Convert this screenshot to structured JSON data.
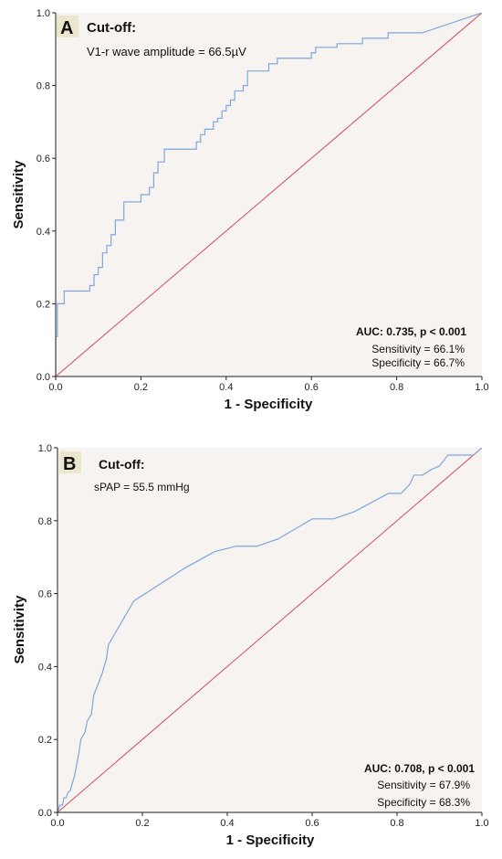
{
  "chart_data": [
    {
      "type": "line",
      "panel_label": "A",
      "cutoff_title": "Cut-off:",
      "cutoff_value": "V1-r wave amplitude = 66.5µV",
      "xlabel": "1 - Specificity",
      "ylabel": "Sensitivity",
      "xlim": [
        0,
        1
      ],
      "ylim": [
        0,
        1
      ],
      "x_ticks": [
        "0.0",
        "0.2",
        "0.4",
        "0.6",
        "0.8",
        "1.0"
      ],
      "y_ticks": [
        "0.0",
        "0.2",
        "0.4",
        "0.6",
        "0.8",
        "1.0"
      ],
      "auc_text": "AUC: 0.735, p < 0.001",
      "sensitivity_text": "Sensitivity = 66.1%",
      "specificity_text": "Specificity = 66.7%",
      "roc_color": "#7ea6dc",
      "reference_color": "#cf4a5f",
      "background": "#f7f3f0",
      "roc_curve": [
        [
          0,
          0
        ],
        [
          0,
          0.11
        ],
        [
          0.004,
          0.11
        ],
        [
          0.004,
          0.2
        ],
        [
          0.02,
          0.2
        ],
        [
          0.02,
          0.235
        ],
        [
          0.08,
          0.235
        ],
        [
          0.08,
          0.25
        ],
        [
          0.09,
          0.25
        ],
        [
          0.09,
          0.28
        ],
        [
          0.1,
          0.28
        ],
        [
          0.1,
          0.3
        ],
        [
          0.11,
          0.3
        ],
        [
          0.11,
          0.34
        ],
        [
          0.12,
          0.34
        ],
        [
          0.12,
          0.36
        ],
        [
          0.13,
          0.36
        ],
        [
          0.13,
          0.39
        ],
        [
          0.14,
          0.39
        ],
        [
          0.14,
          0.43
        ],
        [
          0.16,
          0.43
        ],
        [
          0.16,
          0.48
        ],
        [
          0.2,
          0.48
        ],
        [
          0.2,
          0.5
        ],
        [
          0.22,
          0.5
        ],
        [
          0.22,
          0.52
        ],
        [
          0.23,
          0.52
        ],
        [
          0.23,
          0.56
        ],
        [
          0.24,
          0.56
        ],
        [
          0.24,
          0.59
        ],
        [
          0.255,
          0.59
        ],
        [
          0.255,
          0.625
        ],
        [
          0.33,
          0.625
        ],
        [
          0.33,
          0.645
        ],
        [
          0.34,
          0.645
        ],
        [
          0.34,
          0.665
        ],
        [
          0.35,
          0.665
        ],
        [
          0.35,
          0.68
        ],
        [
          0.37,
          0.68
        ],
        [
          0.37,
          0.7
        ],
        [
          0.38,
          0.7
        ],
        [
          0.38,
          0.71
        ],
        [
          0.39,
          0.71
        ],
        [
          0.39,
          0.73
        ],
        [
          0.4,
          0.73
        ],
        [
          0.4,
          0.745
        ],
        [
          0.41,
          0.745
        ],
        [
          0.41,
          0.76
        ],
        [
          0.42,
          0.76
        ],
        [
          0.42,
          0.785
        ],
        [
          0.44,
          0.785
        ],
        [
          0.44,
          0.8
        ],
        [
          0.45,
          0.8
        ],
        [
          0.45,
          0.84
        ],
        [
          0.5,
          0.84
        ],
        [
          0.5,
          0.86
        ],
        [
          0.52,
          0.86
        ],
        [
          0.52,
          0.875
        ],
        [
          0.6,
          0.875
        ],
        [
          0.6,
          0.89
        ],
        [
          0.61,
          0.89
        ],
        [
          0.61,
          0.905
        ],
        [
          0.66,
          0.905
        ],
        [
          0.66,
          0.915
        ],
        [
          0.72,
          0.915
        ],
        [
          0.72,
          0.93
        ],
        [
          0.78,
          0.93
        ],
        [
          0.78,
          0.945
        ],
        [
          0.86,
          0.945
        ],
        [
          1,
          1
        ]
      ],
      "reference_line": [
        [
          0,
          0
        ],
        [
          1,
          1
        ]
      ]
    },
    {
      "type": "line",
      "panel_label": "B",
      "cutoff_title": "Cut-off:",
      "cutoff_value": "sPAP = 55.5 mmHg",
      "xlabel": "1 - Specificity",
      "ylabel": "Sensitivity",
      "xlim": [
        0,
        1
      ],
      "ylim": [
        0,
        1
      ],
      "x_ticks": [
        "0.0",
        "0.2",
        "0.4",
        "0.6",
        "0.8",
        "1.0"
      ],
      "y_ticks": [
        "0.0",
        "0.2",
        "0.4",
        "0.6",
        "0.8",
        "1.0"
      ],
      "auc_text": "AUC: 0.708, p < 0.001",
      "sensitivity_text": "Sensitivity = 67.9%",
      "specificity_text": "Specificity = 68.3%",
      "roc_color": "#7ea6dc",
      "reference_color": "#cf4a5f",
      "background": "#f7f3f0",
      "roc_curve": [
        [
          0,
          0
        ],
        [
          0.006,
          0.02
        ],
        [
          0.012,
          0.02
        ],
        [
          0.015,
          0.04
        ],
        [
          0.02,
          0.04
        ],
        [
          0.025,
          0.055
        ],
        [
          0.03,
          0.06
        ],
        [
          0.035,
          0.08
        ],
        [
          0.04,
          0.1
        ],
        [
          0.045,
          0.13
        ],
        [
          0.05,
          0.16
        ],
        [
          0.055,
          0.2
        ],
        [
          0.065,
          0.22
        ],
        [
          0.07,
          0.25
        ],
        [
          0.08,
          0.27
        ],
        [
          0.085,
          0.32
        ],
        [
          0.095,
          0.35
        ],
        [
          0.105,
          0.38
        ],
        [
          0.115,
          0.42
        ],
        [
          0.12,
          0.46
        ],
        [
          0.125,
          0.47
        ],
        [
          0.14,
          0.5
        ],
        [
          0.16,
          0.54
        ],
        [
          0.18,
          0.58
        ],
        [
          0.22,
          0.61
        ],
        [
          0.3,
          0.67
        ],
        [
          0.37,
          0.715
        ],
        [
          0.42,
          0.73
        ],
        [
          0.47,
          0.73
        ],
        [
          0.52,
          0.75
        ],
        [
          0.6,
          0.805
        ],
        [
          0.65,
          0.805
        ],
        [
          0.7,
          0.825
        ],
        [
          0.78,
          0.875
        ],
        [
          0.81,
          0.875
        ],
        [
          0.83,
          0.9
        ],
        [
          0.84,
          0.925
        ],
        [
          0.86,
          0.925
        ],
        [
          0.88,
          0.94
        ],
        [
          0.9,
          0.95
        ],
        [
          0.92,
          0.98
        ],
        [
          0.94,
          0.98
        ],
        [
          0.98,
          0.98
        ],
        [
          1,
          1
        ]
      ],
      "reference_line": [
        [
          0,
          0
        ],
        [
          1,
          1
        ]
      ]
    }
  ]
}
